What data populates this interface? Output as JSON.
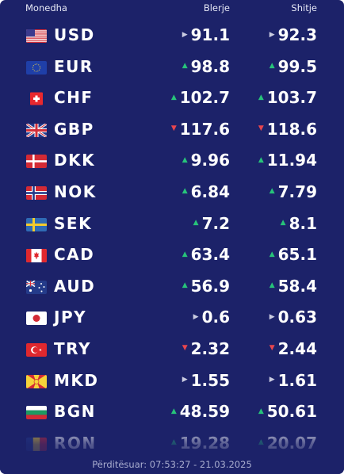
{
  "header": {
    "currency_label": "Monedha",
    "buy_label": "Blerje",
    "sell_label": "Shitje"
  },
  "rows": [
    {
      "code": "USD",
      "buy": "91.1",
      "sell": "92.3",
      "buy_trend": "flat",
      "sell_trend": "flat"
    },
    {
      "code": "EUR",
      "buy": "98.8",
      "sell": "99.5",
      "buy_trend": "up",
      "sell_trend": "up"
    },
    {
      "code": "CHF",
      "buy": "102.7",
      "sell": "103.7",
      "buy_trend": "up",
      "sell_trend": "up"
    },
    {
      "code": "GBP",
      "buy": "117.6",
      "sell": "118.6",
      "buy_trend": "down",
      "sell_trend": "down"
    },
    {
      "code": "DKK",
      "buy": "9.96",
      "sell": "11.94",
      "buy_trend": "up",
      "sell_trend": "up"
    },
    {
      "code": "NOK",
      "buy": "6.84",
      "sell": "7.79",
      "buy_trend": "up",
      "sell_trend": "up"
    },
    {
      "code": "SEK",
      "buy": "7.2",
      "sell": "8.1",
      "buy_trend": "up",
      "sell_trend": "up"
    },
    {
      "code": "CAD",
      "buy": "63.4",
      "sell": "65.1",
      "buy_trend": "up",
      "sell_trend": "up"
    },
    {
      "code": "AUD",
      "buy": "56.9",
      "sell": "58.4",
      "buy_trend": "up",
      "sell_trend": "up"
    },
    {
      "code": "JPY",
      "buy": "0.6",
      "sell": "0.63",
      "buy_trend": "flat",
      "sell_trend": "flat"
    },
    {
      "code": "TRY",
      "buy": "2.32",
      "sell": "2.44",
      "buy_trend": "down",
      "sell_trend": "down"
    },
    {
      "code": "MKD",
      "buy": "1.55",
      "sell": "1.61",
      "buy_trend": "flat",
      "sell_trend": "flat"
    },
    {
      "code": "BGN",
      "buy": "48.59",
      "sell": "50.61",
      "buy_trend": "up",
      "sell_trend": "up"
    },
    {
      "code": "RON",
      "buy": "19.28",
      "sell": "20.07",
      "buy_trend": "up",
      "sell_trend": "up"
    }
  ],
  "footer": {
    "updated": "Përditësuar: 07:53:27 - 21.03.2025"
  },
  "colors": {
    "background": "#1c2269",
    "up": "#27c37a",
    "down": "#e8464e",
    "flat": "#c9cbe0"
  }
}
